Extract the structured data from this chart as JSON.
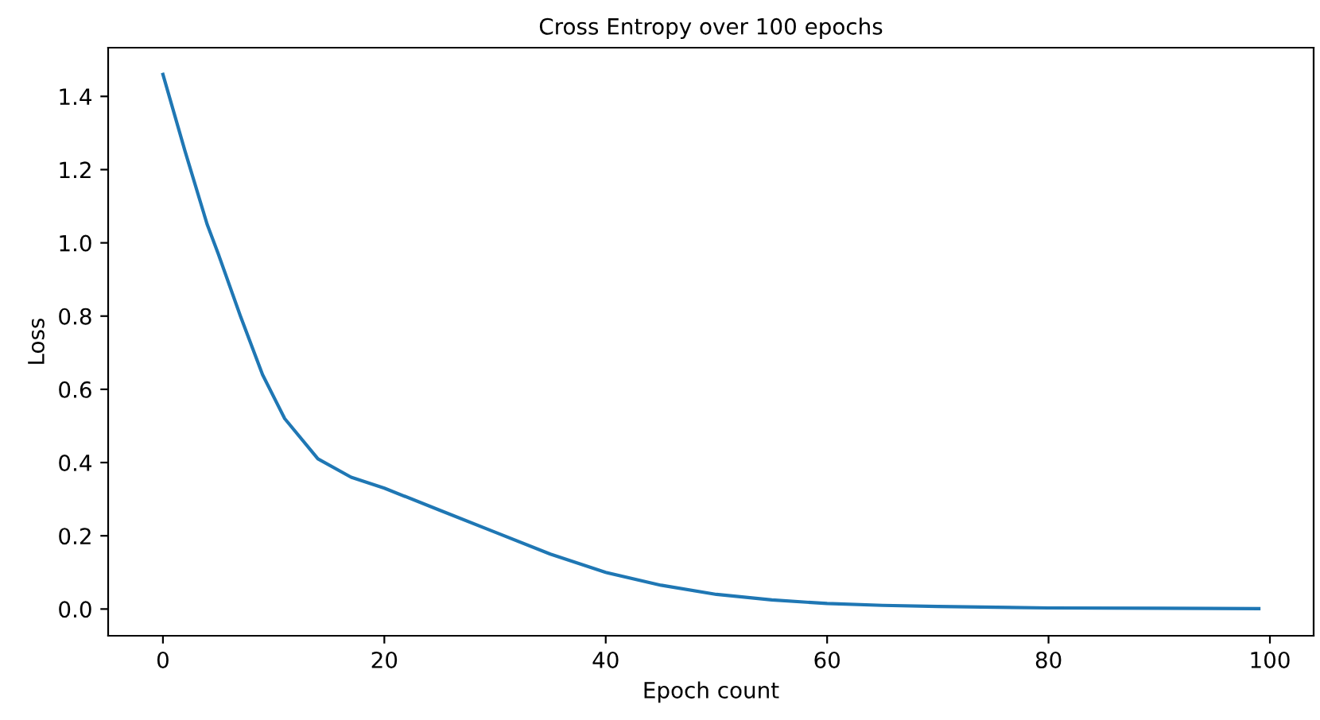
{
  "chart_data": {
    "type": "line",
    "title": "Cross Entropy over 100 epochs",
    "xlabel": "Epoch count",
    "ylabel": "Loss",
    "x": [
      0,
      2,
      4,
      5,
      7,
      9,
      11,
      14,
      17,
      20,
      25,
      30,
      35,
      40,
      45,
      50,
      55,
      60,
      65,
      70,
      80,
      90,
      99
    ],
    "series": [
      {
        "color": "#1f77b4",
        "values": [
          1.46,
          1.25,
          1.05,
          0.97,
          0.8,
          0.64,
          0.52,
          0.41,
          0.36,
          0.33,
          0.27,
          0.21,
          0.15,
          0.1,
          0.065,
          0.04,
          0.025,
          0.015,
          0.01,
          0.007,
          0.003,
          0.002,
          0.001
        ]
      }
    ],
    "xlim": [
      -4.95,
      103.95
    ],
    "ylim": [
      -0.073,
      1.533
    ],
    "xticks": [
      0,
      20,
      40,
      60,
      80,
      100
    ],
    "yticks": [
      {
        "value": 0,
        "label": "0.0"
      },
      {
        "value": 0.2,
        "label": "0.2"
      },
      {
        "value": 0.4,
        "label": "0.4"
      },
      {
        "value": 0.6,
        "label": "0.6"
      },
      {
        "value": 0.8,
        "label": "0.8"
      },
      {
        "value": 1.0,
        "label": "1.0"
      },
      {
        "value": 1.2,
        "label": "1.2"
      },
      {
        "value": 1.4,
        "label": "1.4"
      }
    ],
    "grid": false
  }
}
